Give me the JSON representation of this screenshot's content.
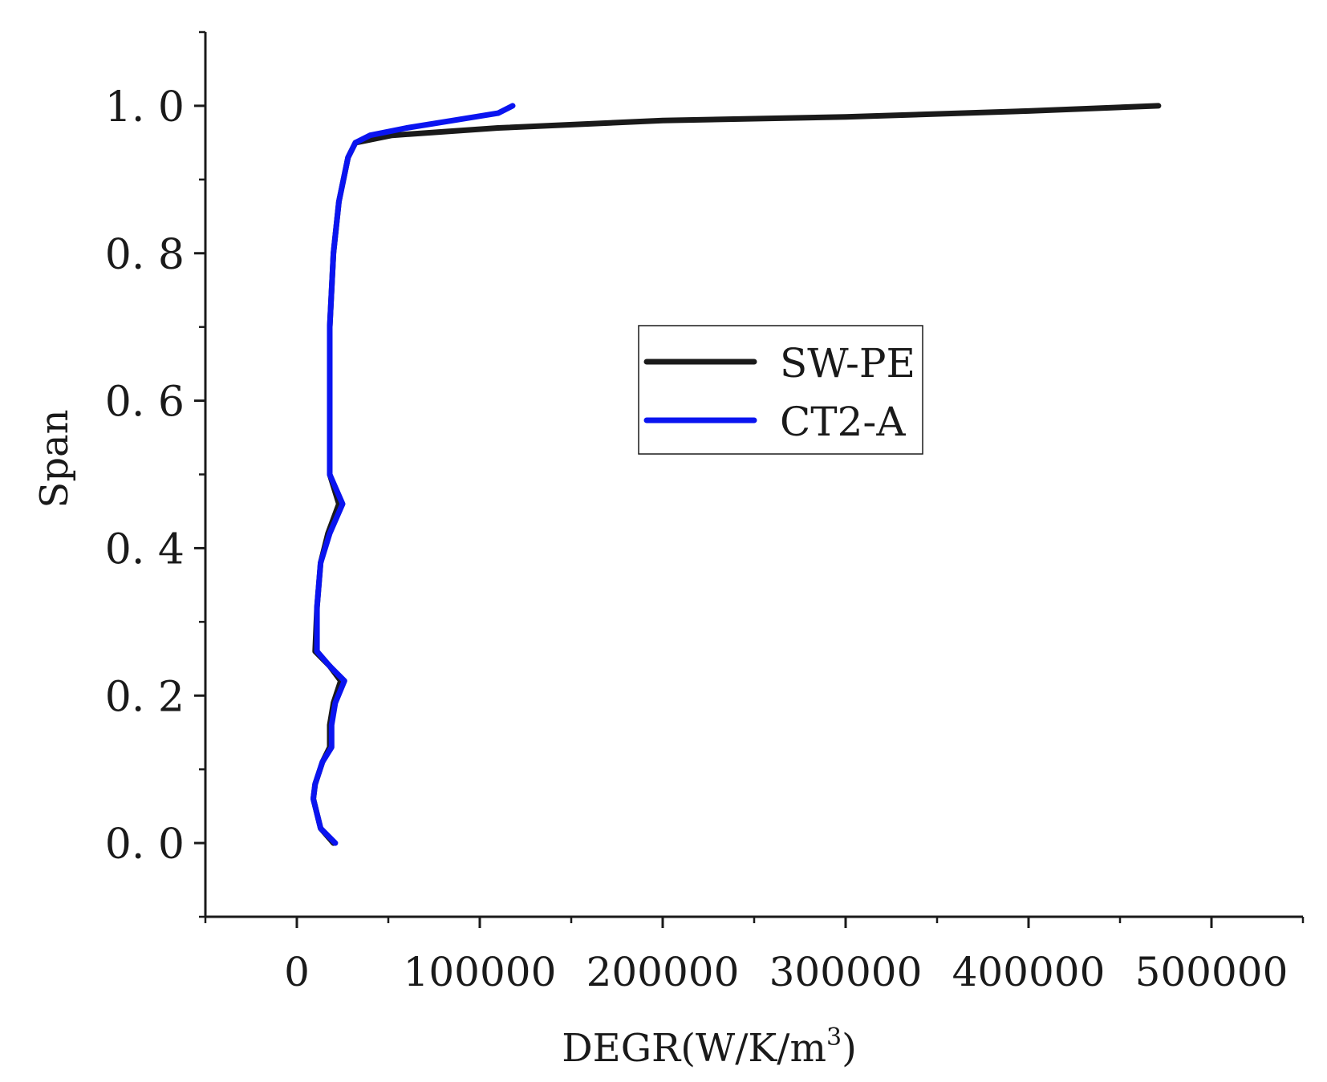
{
  "chart_data": {
    "type": "line",
    "xlabel_main": "DEGR(W/K/m",
    "xlabel_sup": "3",
    "xlabel_close": ")",
    "ylabel": "Span",
    "xlim": [
      -50000,
      550000
    ],
    "ylim": [
      -0.1,
      1.1
    ],
    "x_ticks": [
      0,
      100000,
      200000,
      300000,
      400000,
      500000
    ],
    "x_tick_labels": [
      "0",
      "100000",
      "200000",
      "300000",
      "400000",
      "500000"
    ],
    "x_minor_ticks": [
      -50000,
      50000,
      150000,
      250000,
      350000,
      450000,
      550000
    ],
    "y_ticks": [
      0.0,
      0.2,
      0.4,
      0.6,
      0.8,
      1.0
    ],
    "y_tick_labels": [
      "0. 0",
      "0. 2",
      "0. 4",
      "0. 6",
      "0. 8",
      "1. 0"
    ],
    "y_minor_ticks": [
      -0.1,
      0.1,
      0.3,
      0.5,
      0.7,
      0.9,
      1.1
    ],
    "grid": false,
    "legend_position": "center-right",
    "series": [
      {
        "name": "SW-PE",
        "color": "#1a1a1a",
        "points": [
          [
            20000,
            0.0
          ],
          [
            13000,
            0.02
          ],
          [
            9000,
            0.06
          ],
          [
            10000,
            0.08
          ],
          [
            14000,
            0.11
          ],
          [
            18000,
            0.13
          ],
          [
            18000,
            0.16
          ],
          [
            20000,
            0.19
          ],
          [
            24000,
            0.22
          ],
          [
            18000,
            0.24
          ],
          [
            10000,
            0.26
          ],
          [
            11000,
            0.32
          ],
          [
            13000,
            0.38
          ],
          [
            17000,
            0.42
          ],
          [
            23000,
            0.46
          ],
          [
            18000,
            0.5
          ],
          [
            18000,
            0.6
          ],
          [
            18000,
            0.7
          ],
          [
            20000,
            0.8
          ],
          [
            23000,
            0.87
          ],
          [
            28000,
            0.93
          ],
          [
            32000,
            0.95
          ],
          [
            52000,
            0.96
          ],
          [
            110000,
            0.97
          ],
          [
            200000,
            0.98
          ],
          [
            300000,
            0.985
          ],
          [
            400000,
            0.993
          ],
          [
            471000,
            1.0
          ]
        ]
      },
      {
        "name": "CT2-A",
        "color": "#0a14f0",
        "points": [
          [
            21000,
            0.0
          ],
          [
            13000,
            0.02
          ],
          [
            9000,
            0.06
          ],
          [
            10000,
            0.08
          ],
          [
            14000,
            0.11
          ],
          [
            19000,
            0.13
          ],
          [
            19000,
            0.16
          ],
          [
            21000,
            0.19
          ],
          [
            26000,
            0.22
          ],
          [
            18000,
            0.24
          ],
          [
            11000,
            0.26
          ],
          [
            11000,
            0.32
          ],
          [
            13000,
            0.38
          ],
          [
            18000,
            0.42
          ],
          [
            25000,
            0.46
          ],
          [
            18000,
            0.5
          ],
          [
            18000,
            0.6
          ],
          [
            18000,
            0.7
          ],
          [
            20000,
            0.8
          ],
          [
            23000,
            0.87
          ],
          [
            28000,
            0.93
          ],
          [
            32000,
            0.95
          ],
          [
            40000,
            0.96
          ],
          [
            60000,
            0.97
          ],
          [
            85000,
            0.98
          ],
          [
            110000,
            0.99
          ],
          [
            118000,
            1.0
          ]
        ]
      }
    ]
  }
}
